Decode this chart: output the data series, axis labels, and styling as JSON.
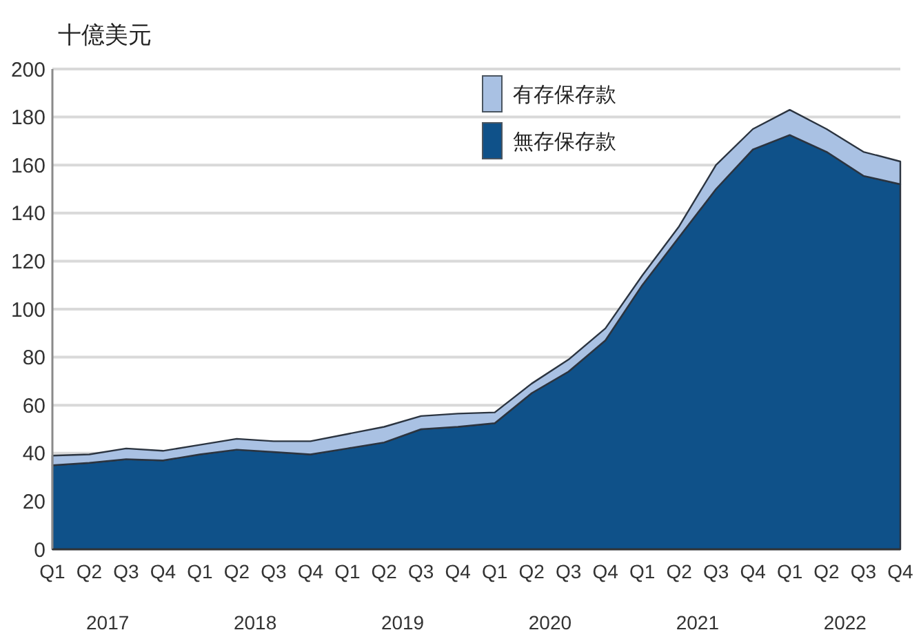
{
  "chart_data": {
    "type": "area",
    "stacked": true,
    "ylabel": "十億美元",
    "categories": [
      "Q1",
      "Q2",
      "Q3",
      "Q4",
      "Q1",
      "Q2",
      "Q3",
      "Q4",
      "Q1",
      "Q2",
      "Q3",
      "Q4",
      "Q1",
      "Q2",
      "Q3",
      "Q4",
      "Q1",
      "Q2",
      "Q3",
      "Q4",
      "Q1",
      "Q2",
      "Q3",
      "Q4"
    ],
    "series": [
      {
        "name": "無存保存款",
        "color": "#0f5189",
        "values": [
          35,
          36,
          37.5,
          37,
          39.5,
          41.5,
          40.5,
          39.5,
          42,
          44.5,
          50,
          51,
          52.5,
          65,
          74,
          87,
          110,
          130,
          150,
          166.5,
          172.5,
          165.5,
          155.5,
          152
        ]
      },
      {
        "name": "有存保存款",
        "color": "#a9c1e3",
        "values": [
          4,
          3.5,
          4.5,
          4,
          4,
          4.5,
          4.5,
          5.5,
          6,
          6.5,
          5.5,
          5.5,
          4.5,
          4,
          5,
          5,
          4,
          4.5,
          10,
          8.5,
          10.5,
          9.5,
          10,
          9.5
        ]
      }
    ],
    "ylim": [
      0,
      200
    ],
    "yticks": [
      0,
      20,
      40,
      60,
      80,
      100,
      120,
      140,
      160,
      180,
      200
    ],
    "grid": "y",
    "legend": "top",
    "annotations": [
      "2017",
      "2018",
      "2019",
      "2020",
      "2021",
      "2022"
    ]
  }
}
